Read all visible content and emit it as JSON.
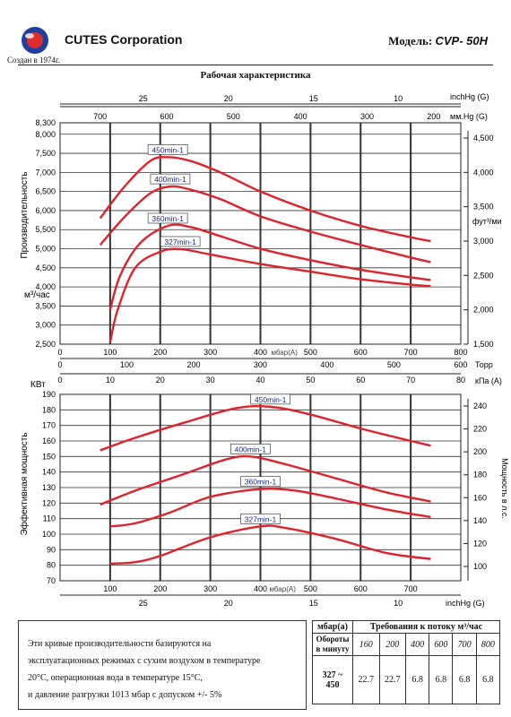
{
  "header": {
    "company": "CUTES Corporation",
    "since": "Создан в 1974г.",
    "model_label": "Модель:",
    "model_value": "CVP- 50H",
    "chart_title": "Рабочая характеристика"
  },
  "chart_data": [
    {
      "type": "line",
      "ylabel": "Производительность",
      "yunit": "м³/час",
      "ylim": [
        2500,
        8300
      ],
      "yticks": [
        "2,500",
        "3,000",
        "3,500",
        "4,000",
        "4,500",
        "5,000",
        "5,500",
        "6,000",
        "6,500",
        "7,000",
        "7,500",
        "8,000",
        "8,300"
      ],
      "y_right_label": "фут³/ми",
      "y_right_ticks": [
        "1,500",
        "2,000",
        "2,500",
        "3,000",
        "3,500",
        "4,000",
        "4,500"
      ],
      "xlabel": "мбар(A)",
      "xlim": [
        0,
        800
      ],
      "xticks": [
        "0",
        "100",
        "200",
        "300",
        "400",
        "500",
        "600",
        "700",
        "800"
      ],
      "x_top1_label": "inchHg (G)",
      "x_top1_ticks": [
        "25",
        "20",
        "15",
        "10"
      ],
      "x_top2_label": "мм.Hg (G)",
      "x_top2_ticks": [
        "700",
        "600",
        "500",
        "400",
        "300",
        "200"
      ],
      "x_bottom2_label": "Торр",
      "x_bottom2_ticks": [
        "0",
        "100",
        "200",
        "300",
        "400",
        "500",
        "600"
      ],
      "x_bottom3_label": "кПа (A)",
      "x_bottom3_ticks": [
        "0",
        "10",
        "20",
        "30",
        "40",
        "50",
        "60",
        "70",
        "80"
      ],
      "grid": true,
      "series": [
        {
          "name": "450min-1",
          "x": [
            80,
            130,
            180,
            215,
            260,
            320,
            400,
            500,
            600,
            700,
            740
          ],
          "y": [
            5800,
            6650,
            7300,
            7400,
            7300,
            7000,
            6500,
            6000,
            5600,
            5300,
            5200
          ]
        },
        {
          "name": "400min-1",
          "x": [
            80,
            130,
            180,
            220,
            260,
            320,
            400,
            500,
            600,
            700,
            740
          ],
          "y": [
            5100,
            5850,
            6450,
            6630,
            6550,
            6300,
            5850,
            5450,
            5100,
            4770,
            4650
          ]
        },
        {
          "name": "360min-1",
          "x": [
            100,
            120,
            160,
            215,
            260,
            320,
            400,
            500,
            600,
            700,
            740
          ],
          "y": [
            3400,
            4300,
            5150,
            5600,
            5570,
            5330,
            5000,
            4700,
            4450,
            4250,
            4180
          ]
        },
        {
          "name": "327min-1",
          "x": [
            100,
            115,
            150,
            200,
            240,
            300,
            400,
            500,
            600,
            700,
            740
          ],
          "y": [
            2550,
            3400,
            4500,
            4920,
            4990,
            4850,
            4600,
            4400,
            4200,
            4060,
            4020
          ]
        }
      ]
    },
    {
      "type": "line",
      "unit_label": "КВт",
      "ylabel": "Эффективная мощность",
      "ylim": [
        70,
        190
      ],
      "yticks": [
        "70",
        "80",
        "90",
        "100",
        "110",
        "120",
        "130",
        "140",
        "150",
        "160",
        "170",
        "180",
        "190"
      ],
      "y_right_label": "Мощность в л.с.",
      "y_right_ticks": [
        "100",
        "120",
        "140",
        "160",
        "180",
        "200",
        "220",
        "240"
      ],
      "xlabel": "мбар(A)",
      "xlim": [
        0,
        800
      ],
      "xticks": [
        "100",
        "200",
        "300",
        "400",
        "500",
        "600",
        "700"
      ],
      "x_bottom2_label": "inchHg (G)",
      "x_bottom2_ticks": [
        "25",
        "20",
        "15",
        "10"
      ],
      "grid": true,
      "series": [
        {
          "name": "450min-1",
          "x": [
            80,
            150,
            250,
            350,
            420,
            500,
            600,
            700,
            740
          ],
          "y": [
            154,
            162,
            172,
            181,
            182,
            177,
            168,
            160,
            157
          ]
        },
        {
          "name": "400min-1",
          "x": [
            80,
            150,
            250,
            330,
            380,
            450,
            550,
            650,
            740
          ],
          "y": [
            119,
            128,
            139,
            148,
            150,
            145,
            136,
            127,
            121
          ]
        },
        {
          "name": "360min-1",
          "x": [
            100,
            150,
            220,
            300,
            400,
            470,
            550,
            650,
            740
          ],
          "y": [
            105,
            107,
            114,
            124,
            129,
            128,
            123,
            116,
            111
          ]
        },
        {
          "name": "327min-1",
          "x": [
            100,
            150,
            200,
            300,
            400,
            450,
            550,
            650,
            740
          ],
          "y": [
            81,
            82,
            86,
            98,
            105,
            104,
            97,
            88,
            84
          ]
        }
      ]
    }
  ],
  "note": {
    "lines": [
      "Эти кривые производительности базируются на",
      "эксплуатационных режимах с сухим воздухом в температуре",
      "20°C, операционная вода в температуре 15°C,",
      "и давление разгрузки 1013 мбар с допуском +/- 5%"
    ]
  },
  "requirements_table": {
    "corner_label": "мбар(а)",
    "title": "Требования к потоку м³/час",
    "rpm_label": "Обороты в минуту",
    "pressures": [
      "160",
      "200",
      "400",
      "600",
      "700",
      "800"
    ],
    "rpm_range": "327 ~ 450",
    "values": [
      "22.7",
      "22.7",
      "6.8",
      "6.8",
      "6.8",
      "6.8"
    ]
  },
  "colors": {
    "curve": "#e0222a",
    "label_text": "#1a2a8c",
    "axis": "#222222",
    "grid": "#333333"
  }
}
